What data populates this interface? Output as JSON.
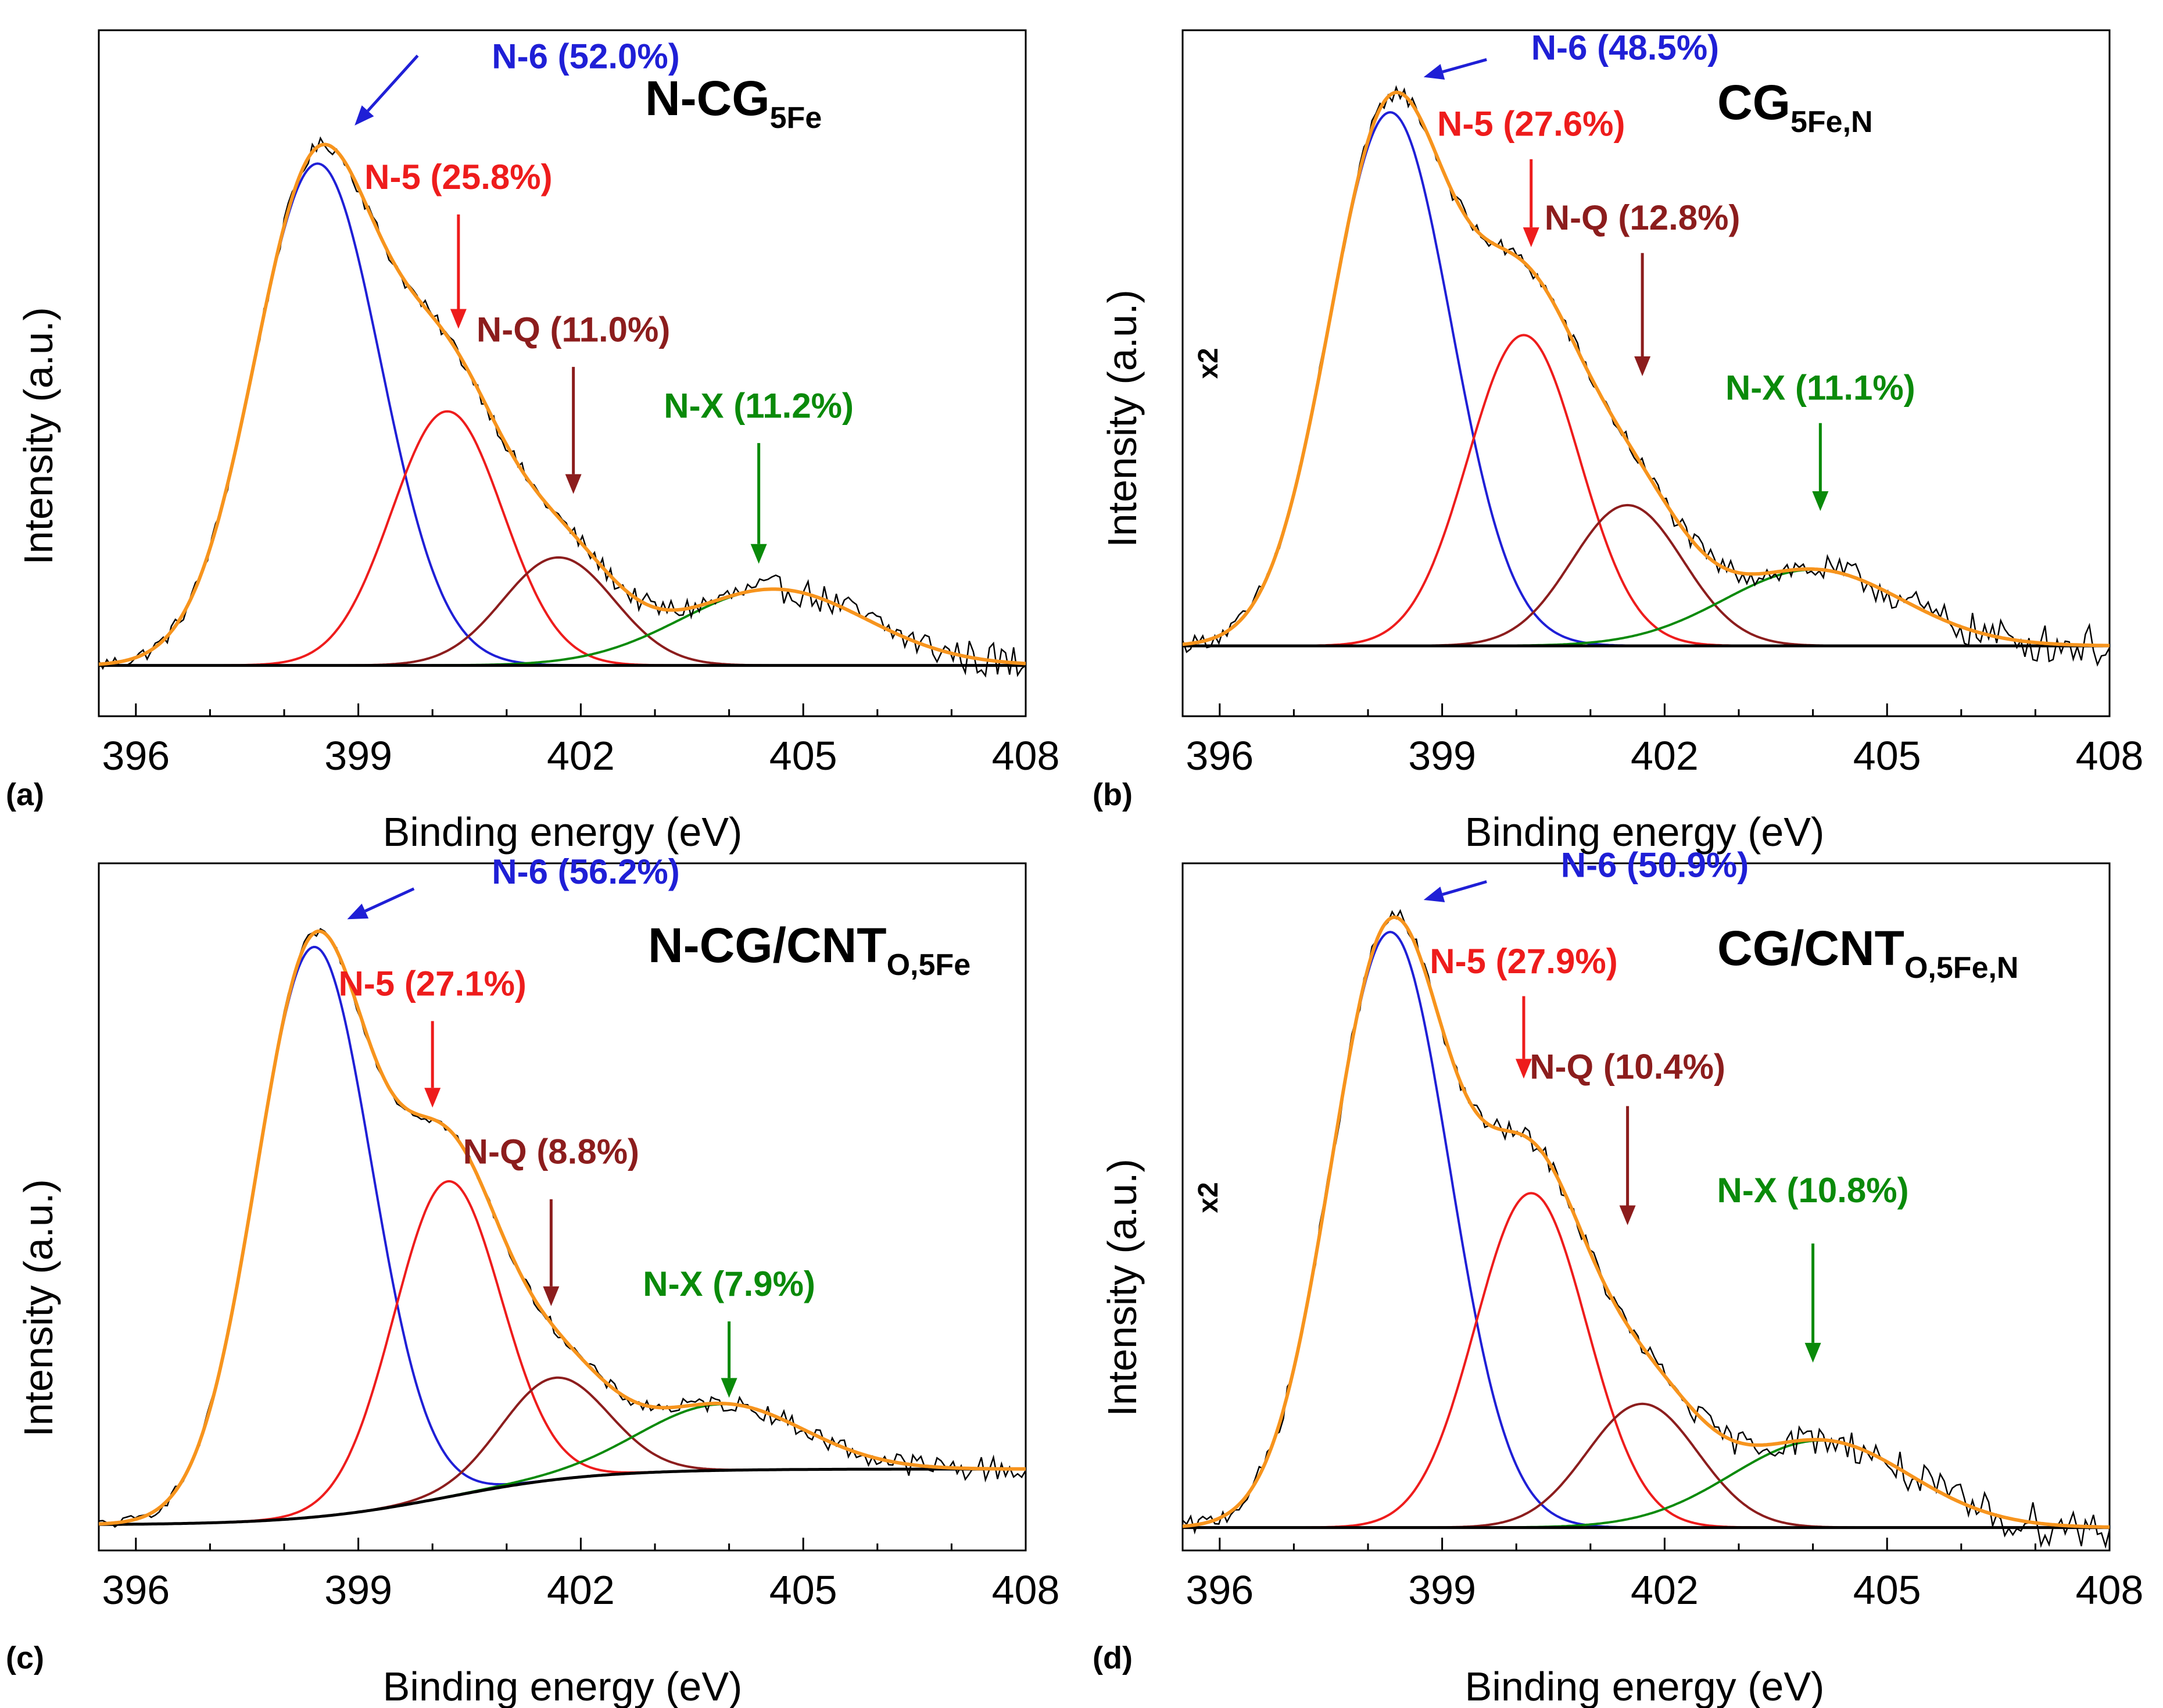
{
  "chart_data": [
    {
      "type": "line",
      "panel_label": "(a)",
      "title": "N-CG",
      "title_subscript": "5Fe",
      "xlabel": "Binding energy (eV)",
      "ylabel": "Intensity (a.u.)",
      "y_multiplier": "",
      "xlim": [
        395.5,
        408
      ],
      "ylim": [
        -0.08,
        1.0
      ],
      "xticks": [
        396,
        399,
        402,
        405,
        408
      ],
      "xtick_labels": [
        "396",
        "399",
        "402",
        "405",
        "408"
      ],
      "background": {
        "type": "flat",
        "y0": 0.0
      },
      "peaks": [
        {
          "name": "N-6",
          "label": "N-6 (52.0%)",
          "center": 398.45,
          "height": 0.79,
          "sigma": 0.85,
          "color": "#1f1fd6"
        },
        {
          "name": "N-5",
          "label": "N-5 (25.8%)",
          "center": 400.2,
          "height": 0.4,
          "sigma": 0.75,
          "color": "#ee1c1c"
        },
        {
          "name": "N-Q",
          "label": "N-Q (11.0%)",
          "center": 401.7,
          "height": 0.17,
          "sigma": 0.75,
          "color": "#8c1d1d"
        },
        {
          "name": "N-X",
          "label": "N-X (11.2%)",
          "center": 404.6,
          "height": 0.12,
          "sigma": 1.25,
          "color": "#0a8a0a"
        }
      ],
      "raw_noise": 0.012,
      "annotations": [
        {
          "text": "N-6 (52.0%)",
          "color": "#1f1fd6",
          "x": 400.8,
          "y": 0.94,
          "arrow": "diag",
          "arrow_from": [
            399.8,
            0.96
          ],
          "arrow_to": [
            398.95,
            0.85
          ]
        },
        {
          "text": "N-5 (25.8%)",
          "color": "#ee1c1c",
          "x": 400.35,
          "y": 0.75,
          "arrow": "down",
          "arrow_from": [
            400.35,
            0.71
          ],
          "arrow_to": [
            400.35,
            0.53
          ]
        },
        {
          "text": "N-Q (11.0%)",
          "color": "#8c1d1d",
          "x": 401.9,
          "y": 0.51,
          "arrow": "down",
          "arrow_from": [
            401.9,
            0.47
          ],
          "arrow_to": [
            401.9,
            0.27
          ]
        },
        {
          "text": "N-X (11.2%)",
          "color": "#0a8a0a",
          "x": 404.4,
          "y": 0.39,
          "arrow": "down",
          "arrow_from": [
            404.4,
            0.35
          ],
          "arrow_to": [
            404.4,
            0.16
          ]
        }
      ]
    },
    {
      "type": "line",
      "panel_label": "(b)",
      "title": "CG",
      "title_subscript": "5Fe,N",
      "xlabel": "Binding energy (eV)",
      "ylabel": "Intensity (a.u.)",
      "y_multiplier": "x2",
      "xlim": [
        395.5,
        408
      ],
      "ylim": [
        -0.12,
        1.05
      ],
      "xticks": [
        396,
        399,
        402,
        405,
        408
      ],
      "xtick_labels": [
        "396",
        "399",
        "402",
        "405",
        "408"
      ],
      "background": {
        "type": "flat",
        "y0": 0.0
      },
      "peaks": [
        {
          "name": "N-6",
          "label": "N-6 (48.5%)",
          "center": 398.3,
          "height": 0.91,
          "sigma": 0.82,
          "color": "#1f1fd6"
        },
        {
          "name": "N-5",
          "label": "N-5 (27.6%)",
          "center": 400.1,
          "height": 0.53,
          "sigma": 0.75,
          "color": "#ee1c1c"
        },
        {
          "name": "N-Q",
          "label": "N-Q (12.8%)",
          "center": 401.5,
          "height": 0.24,
          "sigma": 0.75,
          "color": "#8c1d1d"
        },
        {
          "name": "N-X",
          "label": "N-X (11.1%)",
          "center": 404.0,
          "height": 0.13,
          "sigma": 1.2,
          "color": "#0a8a0a"
        }
      ],
      "raw_noise": 0.014,
      "annotations": [
        {
          "text": "N-6 (48.5%)",
          "color": "#1f1fd6",
          "x": 400.2,
          "y": 1.0,
          "arrow": "diag",
          "arrow_from": [
            399.6,
            1.0
          ],
          "arrow_to": [
            398.75,
            0.97
          ]
        },
        {
          "text": "N-5 (27.6%)",
          "color": "#ee1c1c",
          "x": 400.2,
          "y": 0.87,
          "arrow": "down",
          "arrow_from": [
            400.2,
            0.83
          ],
          "arrow_to": [
            400.2,
            0.68
          ]
        },
        {
          "text": "N-Q (12.8%)",
          "color": "#8c1d1d",
          "x": 401.7,
          "y": 0.71,
          "arrow": "down",
          "arrow_from": [
            401.7,
            0.67
          ],
          "arrow_to": [
            401.7,
            0.46
          ]
        },
        {
          "text": "N-X (11.1%)",
          "color": "#0a8a0a",
          "x": 404.1,
          "y": 0.42,
          "arrow": "down",
          "arrow_from": [
            404.1,
            0.38
          ],
          "arrow_to": [
            404.1,
            0.23
          ]
        }
      ]
    },
    {
      "type": "line",
      "panel_label": "(c)",
      "title": "N-CG/CNT",
      "title_subscript": "O,5Fe",
      "xlabel": "Binding energy (eV)",
      "ylabel": "Intensity (a.u.)",
      "y_multiplier": "",
      "xlim": [
        395.5,
        408
      ],
      "ylim": [
        -0.05,
        1.3
      ],
      "xticks": [
        396,
        399,
        402,
        405,
        408
      ],
      "xtick_labels": [
        "396",
        "399",
        "402",
        "405",
        "408"
      ],
      "background": {
        "type": "step",
        "y0": 0.0,
        "y1": 0.11,
        "center": 400.2,
        "width": 1.0
      },
      "peaks": [
        {
          "name": "N-6",
          "label": "N-6 (56.2%)",
          "center": 398.4,
          "height": 1.12,
          "sigma": 0.78,
          "color": "#1f1fd6"
        },
        {
          "name": "N-5",
          "label": "N-5 (27.1%)",
          "center": 400.2,
          "height": 0.62,
          "sigma": 0.72,
          "color": "#ee1c1c"
        },
        {
          "name": "N-Q",
          "label": "N-Q (8.8%)",
          "center": 401.65,
          "height": 0.2,
          "sigma": 0.72,
          "color": "#8c1d1d"
        },
        {
          "name": "N-X",
          "label": "N-X (7.9%)",
          "center": 403.9,
          "height": 0.13,
          "sigma": 1.1,
          "color": "#0a8a0a"
        }
      ],
      "raw_noise": 0.01,
      "annotations": [
        {
          "text": "N-6 (56.2%)",
          "color": "#1f1fd6",
          "x": 400.8,
          "y": 1.26,
          "arrow": "diag",
          "arrow_from": [
            399.75,
            1.25
          ],
          "arrow_to": [
            398.85,
            1.19
          ]
        },
        {
          "text": "N-5 (27.1%)",
          "color": "#ee1c1c",
          "x": 400.0,
          "y": 1.04,
          "arrow": "down",
          "arrow_from": [
            400.0,
            0.99
          ],
          "arrow_to": [
            400.0,
            0.82
          ]
        },
        {
          "text": "N-Q (8.8%)",
          "color": "#8c1d1d",
          "x": 401.6,
          "y": 0.71,
          "arrow": "down",
          "arrow_from": [
            401.6,
            0.64
          ],
          "arrow_to": [
            401.6,
            0.43
          ]
        },
        {
          "text": "N-X (7.9%)",
          "color": "#0a8a0a",
          "x": 404.0,
          "y": 0.45,
          "arrow": "down",
          "arrow_from": [
            404.0,
            0.4
          ],
          "arrow_to": [
            404.0,
            0.25
          ]
        }
      ]
    },
    {
      "type": "line",
      "panel_label": "(d)",
      "title": "CG/CNT",
      "title_subscript": "O,5Fe,N",
      "xlabel": "Binding energy (eV)",
      "ylabel": "Intensity (a.u.)",
      "y_multiplier": "x2",
      "xlim": [
        395.5,
        408
      ],
      "ylim": [
        -0.05,
        1.45
      ],
      "xticks": [
        396,
        399,
        402,
        405,
        408
      ],
      "xtick_labels": [
        "396",
        "399",
        "402",
        "405",
        "408"
      ],
      "background": {
        "type": "flat",
        "y0": 0.0
      },
      "peaks": [
        {
          "name": "N-6",
          "label": "N-6 (50.9%)",
          "center": 398.3,
          "height": 1.3,
          "sigma": 0.8,
          "color": "#1f1fd6"
        },
        {
          "name": "N-5",
          "label": "N-5 (27.9%)",
          "center": 400.2,
          "height": 0.73,
          "sigma": 0.75,
          "color": "#ee1c1c"
        },
        {
          "name": "N-Q",
          "label": "N-Q (10.4%)",
          "center": 401.7,
          "height": 0.27,
          "sigma": 0.75,
          "color": "#8c1d1d"
        },
        {
          "name": "N-X",
          "label": "N-X (10.8%)",
          "center": 404.1,
          "height": 0.19,
          "sigma": 1.2,
          "color": "#0a8a0a"
        }
      ],
      "raw_noise": 0.02,
      "annotations": [
        {
          "text": "N-6 (50.9%)",
          "color": "#1f1fd6",
          "x": 400.6,
          "y": 1.42,
          "arrow": "diag",
          "arrow_from": [
            399.6,
            1.41
          ],
          "arrow_to": [
            398.75,
            1.37
          ]
        },
        {
          "text": "N-5 (27.9%)",
          "color": "#ee1c1c",
          "x": 400.1,
          "y": 1.21,
          "arrow": "down",
          "arrow_from": [
            400.1,
            1.16
          ],
          "arrow_to": [
            400.1,
            0.98
          ]
        },
        {
          "text": "N-Q (10.4%)",
          "color": "#8c1d1d",
          "x": 401.5,
          "y": 0.98,
          "arrow": "down",
          "arrow_from": [
            401.5,
            0.92
          ],
          "arrow_to": [
            401.5,
            0.66
          ]
        },
        {
          "text": "N-X (10.8%)",
          "color": "#0a8a0a",
          "x": 404.0,
          "y": 0.71,
          "arrow": "down",
          "arrow_from": [
            404.0,
            0.62
          ],
          "arrow_to": [
            404.0,
            0.36
          ]
        }
      ]
    }
  ],
  "colors": {
    "raw": "#000000",
    "envelope": "#f7941d",
    "baseline": "#000000",
    "axis": "#000000"
  }
}
